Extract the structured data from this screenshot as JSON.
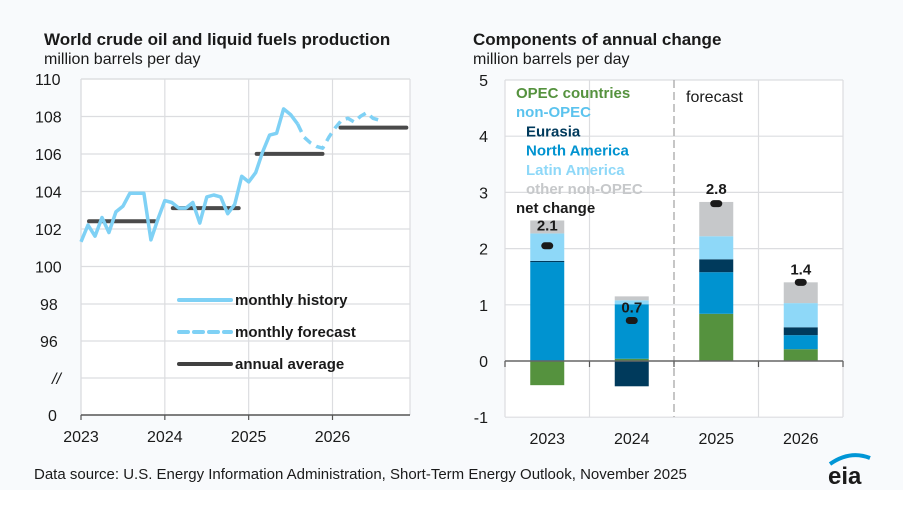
{
  "footer": {
    "source": "Data source: U.S. Energy Information Administration, Short-Term Energy Outlook, November 2025",
    "logo_text": "eia"
  },
  "colors": {
    "history": "#7fd1f5",
    "annual_average": "#414141",
    "opec": "#55923e",
    "non_opec_label": "#5bc3ee",
    "eurasia": "#003a5c",
    "north_america": "#0093d0",
    "latin_america": "#8ed8f8",
    "other_non_opec": "#c6c8ca",
    "net_change": "#1a1a1a",
    "grid": "#dcdde0",
    "logo_arc": "#0096d6"
  },
  "chart_data": [
    {
      "type": "line",
      "title": "World crude oil and liquid fuels production",
      "subtitle": "million barrels per day",
      "xlabel": "",
      "ylabel": "million barrels per day",
      "x_tick_labels": [
        "2023",
        "2024",
        "2025",
        "2026"
      ],
      "y_tick_labels": [
        "110",
        "108",
        "106",
        "104",
        "102",
        "100",
        "98",
        "96",
        "//",
        "0"
      ],
      "axis_break_label": "//",
      "ylim": [
        96,
        110
      ],
      "grid": true,
      "legend_position": "bottom-right",
      "legend": [
        {
          "label": "monthly history",
          "style": "solid-light"
        },
        {
          "label": "monthly forecast",
          "style": "dashed-light"
        },
        {
          "label": "annual average",
          "style": "solid-dark"
        }
      ],
      "monthly_history": {
        "start": "2023-01",
        "values": [
          101.3,
          102.2,
          101.6,
          102.6,
          101.8,
          102.9,
          103.2,
          103.9,
          103.9,
          103.9,
          101.4,
          102.5,
          103.5,
          103.4,
          103.1,
          103.1,
          103.4,
          102.3,
          103.7,
          103.8,
          103.7,
          102.8,
          103.3,
          104.8,
          104.5,
          105.0,
          106.1,
          107.0,
          107.1,
          108.4,
          108.1,
          107.6
        ]
      },
      "monthly_forecast": {
        "start": "2025-08",
        "values": [
          107.6,
          106.9,
          106.6,
          106.4,
          106.3,
          106.9,
          107.4,
          107.8,
          107.9,
          107.7,
          108.0,
          108.2,
          107.9,
          107.8
        ]
      },
      "annual_average": [
        {
          "year": "2023",
          "value": 102.4
        },
        {
          "year": "2024",
          "value": 103.1
        },
        {
          "year": "2025",
          "value": 106.0
        },
        {
          "year": "2026",
          "value": 107.4
        }
      ]
    },
    {
      "type": "bar",
      "stacked": true,
      "title": "Components of annual change",
      "subtitle": "million barrels per day",
      "ylabel": "million barrels per day",
      "categories": [
        "2023",
        "2024",
        "2025",
        "2026"
      ],
      "y_tick_labels": [
        "5",
        "4",
        "3",
        "2",
        "1",
        "0",
        "-1"
      ],
      "ylim": [
        -1,
        5
      ],
      "grid": true,
      "forecast_label": "forecast",
      "forecast_starts_at": "2025",
      "legend_position": "top-left",
      "legend": [
        {
          "label": "OPEC countries",
          "key": "opec",
          "indent": false
        },
        {
          "label": "non-OPEC",
          "key": "non_opec_label",
          "indent": false
        },
        {
          "label": "Eurasia",
          "key": "eurasia",
          "indent": true
        },
        {
          "label": "North America",
          "key": "north_america",
          "indent": true
        },
        {
          "label": "Latin America",
          "key": "latin_america",
          "indent": true
        },
        {
          "label": "other non-OPEC",
          "key": "other_non_opec",
          "indent": true
        },
        {
          "label": "net change",
          "key": "net_change",
          "indent": false
        }
      ],
      "series": [
        {
          "name": "OPEC countries",
          "key": "opec",
          "values": [
            -0.43,
            0.04,
            0.84,
            0.21
          ]
        },
        {
          "name": "North America",
          "key": "north_america",
          "values": [
            1.76,
            0.97,
            0.74,
            0.25
          ]
        },
        {
          "name": "Eurasia",
          "key": "eurasia",
          "values": [
            0.02,
            -0.45,
            0.23,
            0.14
          ]
        },
        {
          "name": "Latin America",
          "key": "latin_america",
          "values": [
            0.49,
            0.07,
            0.41,
            0.43
          ]
        },
        {
          "name": "other non-OPEC",
          "key": "other_non_opec",
          "values": [
            0.23,
            0.07,
            0.61,
            0.37
          ]
        }
      ],
      "net_change": {
        "values": [
          2.05,
          0.72,
          2.8,
          1.4
        ],
        "labels": [
          "2.1",
          "0.7",
          "2.8",
          "1.4"
        ]
      }
    }
  ]
}
